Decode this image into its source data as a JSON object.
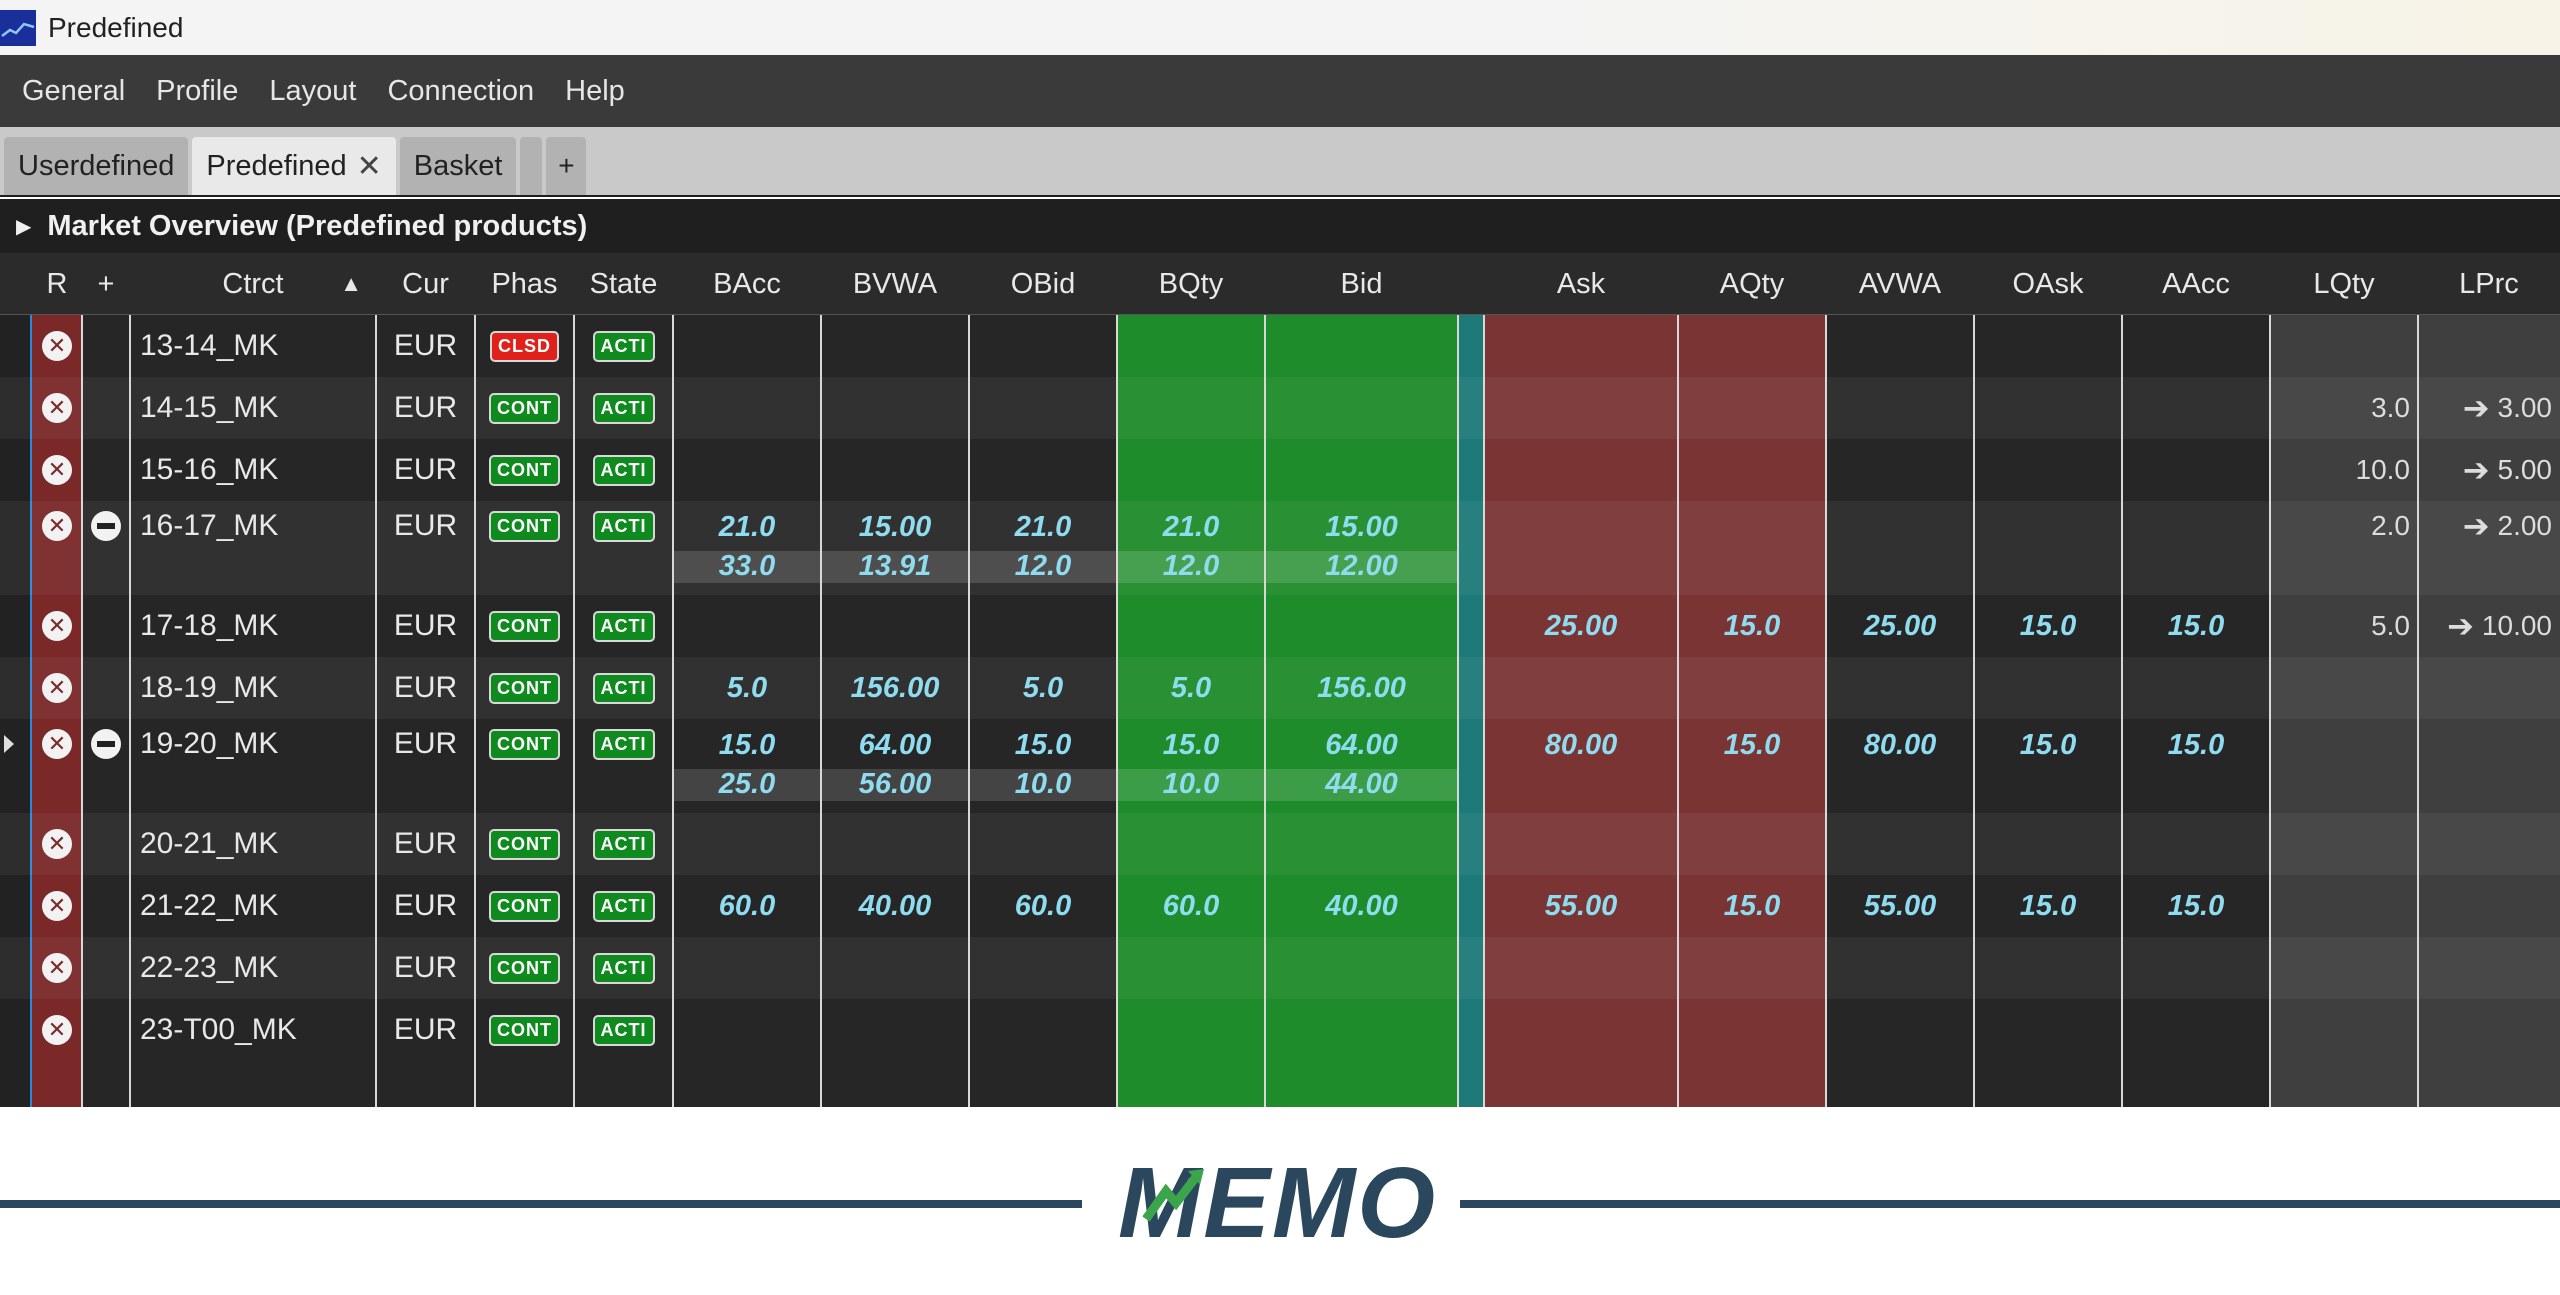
{
  "window": {
    "title": "Predefined"
  },
  "menu": [
    "General",
    "Profile",
    "Layout",
    "Connection",
    "Help"
  ],
  "tabs": [
    {
      "label": "Userdefined",
      "active": false
    },
    {
      "label": "Predefined",
      "active": true,
      "closable": true
    },
    {
      "label": "Basket",
      "active": false
    }
  ],
  "tab_add_label": "+",
  "tab_close_label": "✕",
  "section": {
    "title": "Market Overview (Predefined products)"
  },
  "columns": [
    "R",
    "+",
    "Ctrct",
    "Cur",
    "Phas",
    "State",
    "BAcc",
    "BVWA",
    "OBid",
    "BQty",
    "Bid",
    "Ask",
    "AQty",
    "AVWA",
    "OAsk",
    "AAcc",
    "LQty",
    "LPrc"
  ],
  "sort": {
    "column": "Ctrct",
    "indicator": "▲"
  },
  "colors": {
    "bid_green": "#1e8c2a",
    "ask_red": "#7a3434",
    "r_column": "#7a2828",
    "value_blue": "#8fdcf0",
    "logo_navy": "#2a475e",
    "logo_green": "#3aa54a"
  },
  "rows": [
    {
      "ctrct": "13-14_MK",
      "cur": "EUR",
      "phas": "CLSD",
      "state": "ACTI",
      "expand": false,
      "bid": [],
      "ask": null,
      "lqty": "",
      "lprc": ""
    },
    {
      "ctrct": "14-15_MK",
      "cur": "EUR",
      "phas": "CONT",
      "state": "ACTI",
      "expand": false,
      "bid": [],
      "ask": null,
      "lqty": "3.0",
      "lprc": "3.00"
    },
    {
      "ctrct": "15-16_MK",
      "cur": "EUR",
      "phas": "CONT",
      "state": "ACTI",
      "expand": false,
      "bid": [],
      "ask": null,
      "lqty": "10.0",
      "lprc": "5.00"
    },
    {
      "ctrct": "16-17_MK",
      "cur": "EUR",
      "phas": "CONT",
      "state": "ACTI",
      "expand": true,
      "bid": [
        {
          "bacc": "21.0",
          "bvwa": "15.00",
          "obid": "21.0",
          "bqty": "21.0",
          "bid": "15.00"
        },
        {
          "bacc": "33.0",
          "bvwa": "13.91",
          "obid": "12.0",
          "bqty": "12.0",
          "bid": "12.00"
        }
      ],
      "ask": null,
      "lqty": "2.0",
      "lprc": "2.00"
    },
    {
      "ctrct": "17-18_MK",
      "cur": "EUR",
      "phas": "CONT",
      "state": "ACTI",
      "expand": false,
      "bid": [],
      "ask": {
        "ask": "25.00",
        "aqty": "15.0",
        "avwa": "25.00",
        "oask": "15.0",
        "aacc": "15.0"
      },
      "lqty": "5.0",
      "lprc": "10.00"
    },
    {
      "ctrct": "18-19_MK",
      "cur": "EUR",
      "phas": "CONT",
      "state": "ACTI",
      "expand": false,
      "bid": [
        {
          "bacc": "5.0",
          "bvwa": "156.00",
          "obid": "5.0",
          "bqty": "5.0",
          "bid": "156.00"
        }
      ],
      "ask": null,
      "lqty": "",
      "lprc": ""
    },
    {
      "ctrct": "19-20_MK",
      "cur": "EUR",
      "phas": "CONT",
      "state": "ACTI",
      "expand": true,
      "selected": true,
      "bid": [
        {
          "bacc": "15.0",
          "bvwa": "64.00",
          "obid": "15.0",
          "bqty": "15.0",
          "bid": "64.00"
        },
        {
          "bacc": "25.0",
          "bvwa": "56.00",
          "obid": "10.0",
          "bqty": "10.0",
          "bid": "44.00"
        }
      ],
      "ask": {
        "ask": "80.00",
        "aqty": "15.0",
        "avwa": "80.00",
        "oask": "15.0",
        "aacc": "15.0"
      },
      "lqty": "",
      "lprc": ""
    },
    {
      "ctrct": "20-21_MK",
      "cur": "EUR",
      "phas": "CONT",
      "state": "ACTI",
      "expand": false,
      "bid": [],
      "ask": null,
      "lqty": "",
      "lprc": ""
    },
    {
      "ctrct": "21-22_MK",
      "cur": "EUR",
      "phas": "CONT",
      "state": "ACTI",
      "expand": false,
      "bid": [
        {
          "bacc": "60.0",
          "bvwa": "40.00",
          "obid": "60.0",
          "bqty": "60.0",
          "bid": "40.00"
        }
      ],
      "ask": {
        "ask": "55.00",
        "aqty": "15.0",
        "avwa": "55.00",
        "oask": "15.0",
        "aacc": "15.0"
      },
      "lqty": "",
      "lprc": ""
    },
    {
      "ctrct": "22-23_MK",
      "cur": "EUR",
      "phas": "CONT",
      "state": "ACTI",
      "expand": false,
      "bid": [],
      "ask": null,
      "lqty": "",
      "lprc": ""
    },
    {
      "ctrct": "23-T00_MK",
      "cur": "EUR",
      "phas": "CONT",
      "state": "ACTI",
      "expand": false,
      "bid": [],
      "ask": null,
      "lqty": "",
      "lprc": ""
    }
  ],
  "footer_logo": "MEMO"
}
